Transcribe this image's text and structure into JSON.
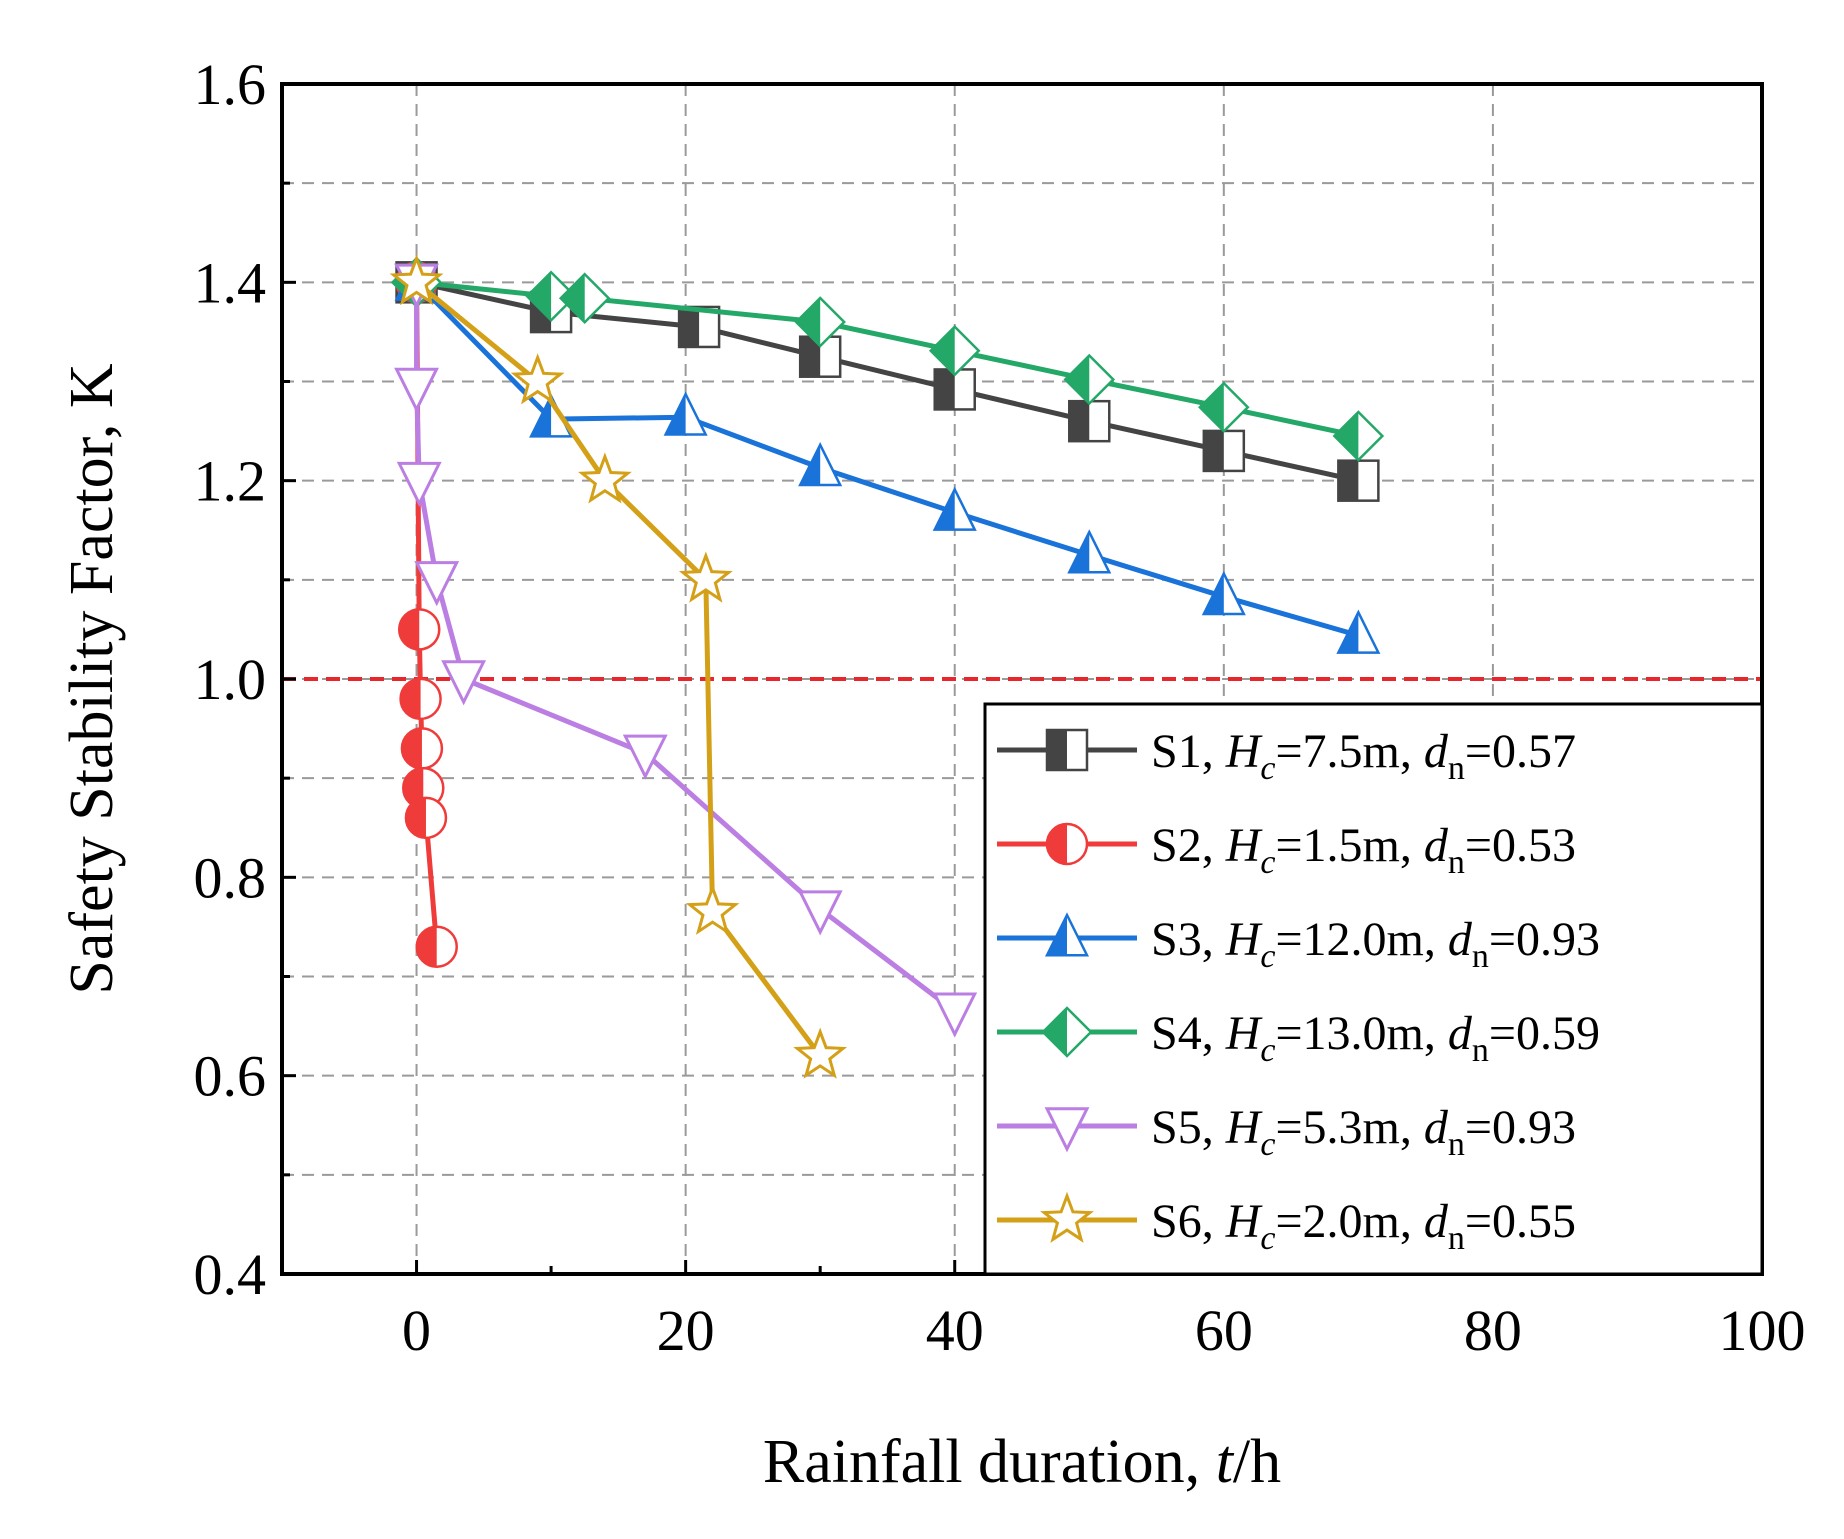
{
  "chart_data": {
    "type": "line",
    "xlabel": "Rainfall duration, ",
    "xlabel_italic": "t",
    "xlabel_unit": "/h",
    "ylabel": "Safety Stability Factor, K",
    "xlim": [
      -10,
      100
    ],
    "ylim": [
      0.4,
      1.6
    ],
    "xticks": [
      0,
      20,
      40,
      60,
      80,
      100
    ],
    "xtick_labels": [
      "0",
      "20",
      "40",
      "60",
      "80",
      "100"
    ],
    "yticks": [
      0.4,
      0.6,
      0.8,
      1.0,
      1.2,
      1.4,
      1.6
    ],
    "ytick_labels": [
      "0.4",
      "0.6",
      "0.8",
      "1.0",
      "1.2",
      "1.4",
      "1.6"
    ],
    "grid": true,
    "reference_line": {
      "y": 1.0,
      "color": "#e8262b",
      "style": "dashed"
    },
    "legend_position": "bottom-right",
    "series": [
      {
        "name": "S1",
        "label_prefix": "S1, ",
        "hc_value": "=7.5m, ",
        "dn_value": "=0.57",
        "color": "#444444",
        "marker": "square-half",
        "x": [
          0,
          10,
          21,
          30,
          40,
          50,
          60,
          70
        ],
        "y": [
          1.4,
          1.37,
          1.355,
          1.325,
          1.292,
          1.26,
          1.23,
          1.2
        ]
      },
      {
        "name": "S2",
        "label_prefix": "S2, ",
        "hc_value": "=1.5m, ",
        "dn_value": "=0.53",
        "color": "#f03b3b",
        "marker": "circle-half",
        "x": [
          0,
          0.2,
          0.3,
          0.4,
          0.5,
          0.7,
          1.5
        ],
        "y": [
          1.4,
          1.05,
          0.98,
          0.93,
          0.89,
          0.86,
          0.73
        ]
      },
      {
        "name": "S3",
        "label_prefix": "S3, ",
        "hc_value": "=12.0m, ",
        "dn_value": "=0.93",
        "color": "#1a73d9",
        "marker": "triangle-up-half",
        "x": [
          0,
          10,
          20,
          30,
          40,
          50,
          60,
          70
        ],
        "y": [
          1.4,
          1.262,
          1.264,
          1.213,
          1.168,
          1.125,
          1.083,
          1.044
        ]
      },
      {
        "name": "S4",
        "label_prefix": "S4, ",
        "hc_value": "=13.0m, ",
        "dn_value": "=0.59",
        "color": "#23a868",
        "marker": "diamond-half",
        "x": [
          0,
          10,
          12.5,
          30,
          40,
          50,
          60,
          70
        ],
        "y": [
          1.4,
          1.386,
          1.384,
          1.36,
          1.331,
          1.302,
          1.274,
          1.245
        ]
      },
      {
        "name": "S5",
        "label_prefix": "S5, ",
        "hc_value": "=5.3m, ",
        "dn_value": "=0.93",
        "color": "#bb7ee2",
        "marker": "triangle-down",
        "x": [
          0,
          0,
          0.2,
          1.5,
          3.5,
          17,
          30,
          40
        ],
        "y": [
          1.4,
          1.295,
          1.2,
          1.1,
          1.0,
          0.925,
          0.768,
          0.665
        ]
      },
      {
        "name": "S6",
        "label_prefix": "S6, ",
        "hc_value": "=2.0m, ",
        "dn_value": "=0.55",
        "color": "#d4a017",
        "marker": "star",
        "x": [
          0,
          9,
          14,
          21.5,
          22,
          30
        ],
        "y": [
          1.4,
          1.3,
          1.2,
          1.1,
          0.765,
          0.62
        ]
      }
    ]
  }
}
